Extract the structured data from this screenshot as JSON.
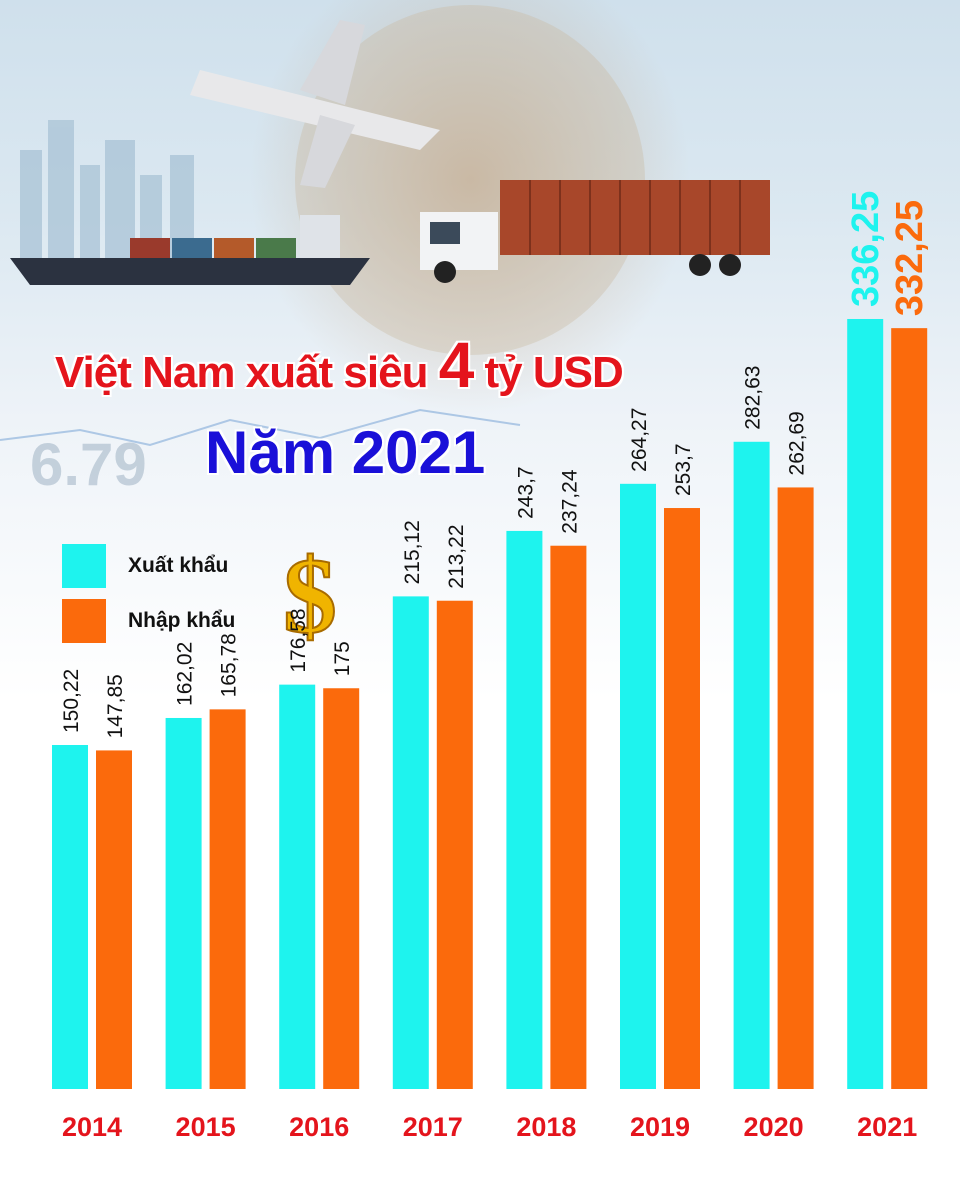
{
  "title": {
    "line1_prefix": "Việt Nam xuất siêu ",
    "line1_big": "4",
    "line1_suffix": " tỷ USD",
    "line2": "Năm 2021"
  },
  "legend": {
    "export_label": "Xuất khẩu",
    "import_label": "Nhập khẩu",
    "dollar_symbol": "$"
  },
  "colors": {
    "export": "#1ef3ee",
    "import": "#fb6a0c",
    "year_label": "#e4141c",
    "title_red": "#e4141c",
    "title_blue": "#1a10d8"
  },
  "chart_data": {
    "type": "bar",
    "categories": [
      "2014",
      "2015",
      "2016",
      "2017",
      "2018",
      "2019",
      "2020",
      "2021"
    ],
    "series": [
      {
        "name": "Xuất khẩu",
        "values": [
          150.22,
          162.02,
          176.58,
          215.12,
          243.7,
          264.27,
          282.63,
          336.25
        ],
        "labels": [
          "150,22",
          "162,02",
          "176,58",
          "215,12",
          "243,7",
          "264,27",
          "282,63",
          "336,25"
        ]
      },
      {
        "name": "Nhập khẩu",
        "values": [
          147.85,
          165.78,
          175,
          213.22,
          237.24,
          253.7,
          262.69,
          332.25
        ],
        "labels": [
          "147,85",
          "165,78",
          "175",
          "213,22",
          "237,24",
          "253,7",
          "262,69",
          "332,25"
        ]
      }
    ],
    "title": "Việt Nam xuất siêu 4 tỷ USD Năm 2021",
    "xlabel": "",
    "ylabel": "",
    "legend": "left"
  }
}
